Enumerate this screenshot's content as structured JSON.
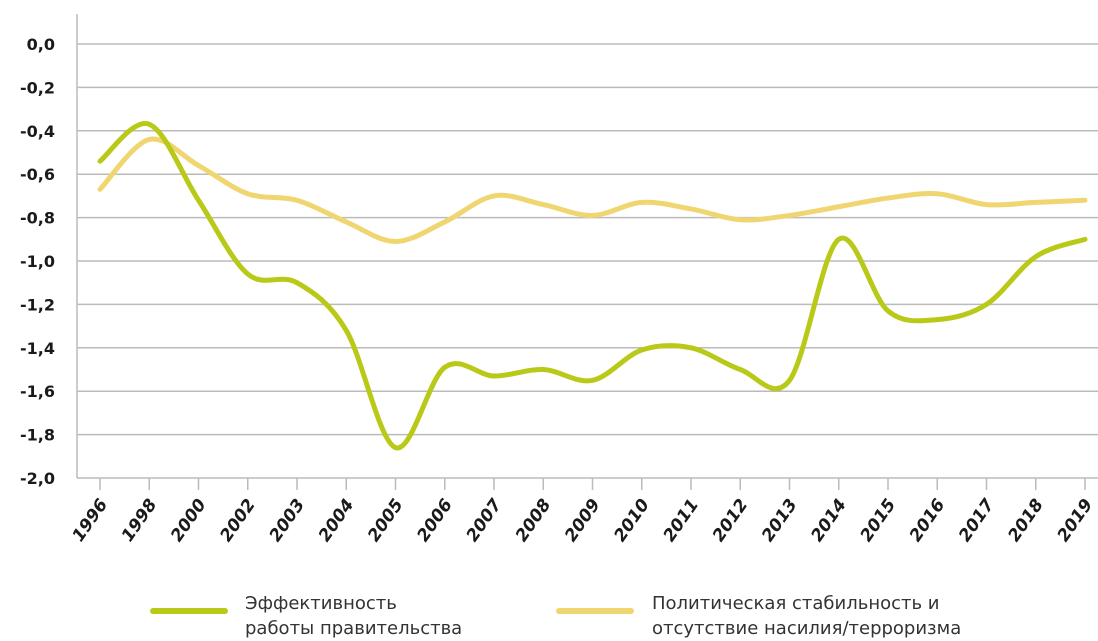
{
  "chart_data": {
    "type": "line",
    "categories": [
      "1996",
      "1998",
      "2000",
      "2002",
      "2003",
      "2004",
      "2005",
      "2006",
      "2007",
      "2008",
      "2009",
      "2010",
      "2011",
      "2012",
      "2013",
      "2014",
      "2015",
      "2016",
      "2017",
      "2018",
      "2019"
    ],
    "series": [
      {
        "name": "Эффективность работы правительства",
        "color": "#b8c918",
        "values": [
          -0.54,
          -0.37,
          -0.72,
          -1.06,
          -1.1,
          -1.32,
          -1.86,
          -1.49,
          -1.53,
          -1.5,
          -1.55,
          -1.41,
          -1.4,
          -1.5,
          -1.55,
          -0.9,
          -1.23,
          -1.27,
          -1.2,
          -0.98,
          -0.9
        ]
      },
      {
        "name": "Политическая стабильность и отсутствие насилия/терроризма",
        "color": "#f0d670",
        "values": [
          -0.67,
          -0.44,
          -0.56,
          -0.69,
          -0.72,
          -0.82,
          -0.91,
          -0.82,
          -0.7,
          -0.74,
          -0.79,
          -0.73,
          -0.76,
          -0.81,
          -0.79,
          -0.75,
          -0.71,
          -0.69,
          -0.74,
          -0.73,
          -0.72
        ]
      }
    ],
    "ylim": [
      -2,
      0
    ],
    "yticks": [
      {
        "value": 0,
        "label": "0,0"
      },
      {
        "value": -0.2,
        "label": "-0,2"
      },
      {
        "value": -0.4,
        "label": "-0,4"
      },
      {
        "value": -0.6,
        "label": "-0,6"
      },
      {
        "value": -0.8,
        "label": "-0,8"
      },
      {
        "value": -1,
        "label": "-1,0"
      },
      {
        "value": -1.2,
        "label": "-1,2"
      },
      {
        "value": -1.4,
        "label": "-1,4"
      },
      {
        "value": -1.6,
        "label": "-1,6"
      },
      {
        "value": -1.8,
        "label": "-1,8"
      },
      {
        "value": -2,
        "label": "-2,0"
      }
    ],
    "grid": true
  }
}
